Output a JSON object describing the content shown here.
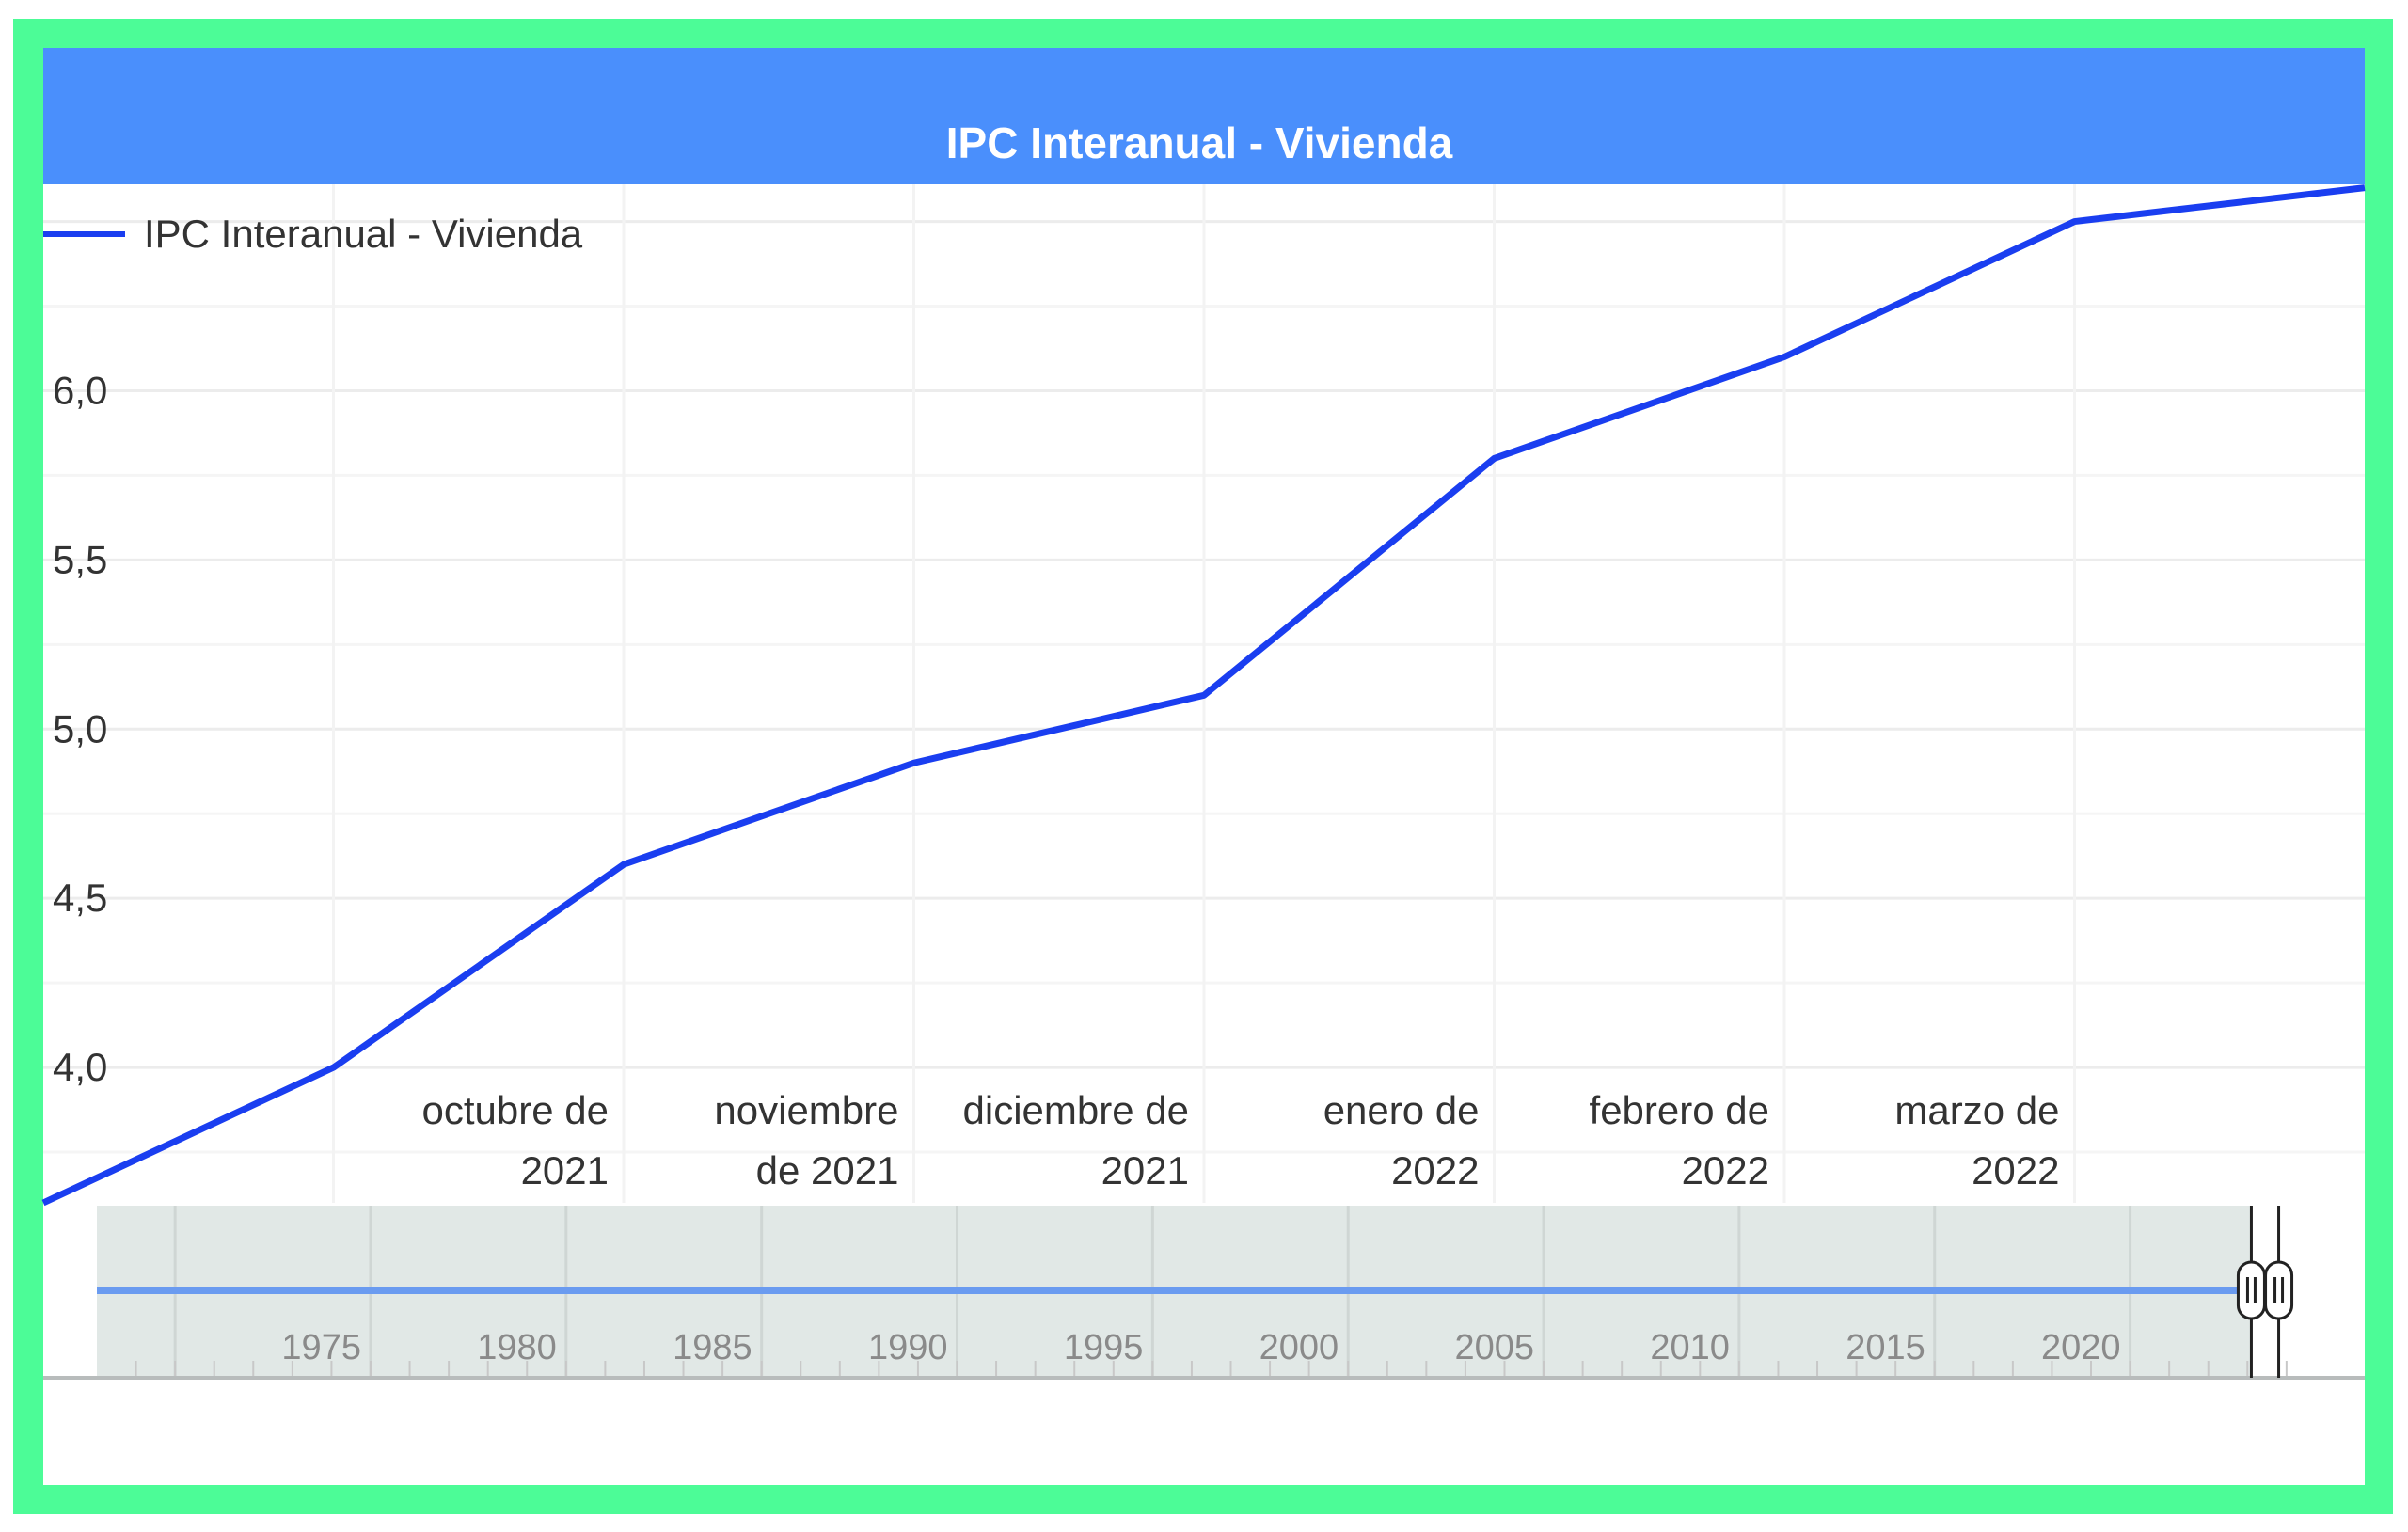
{
  "chart_data": {
    "type": "line",
    "title": "IPC Interanual - Vivienda",
    "xlabel": "",
    "ylabel": "",
    "categories": [
      "",
      "",
      "octubre de|2021",
      "noviembre|de 2021",
      "diciembre de|2021",
      "enero de|2022",
      "febrero de|2022",
      "marzo de|2022",
      ""
    ],
    "series": [
      {
        "name": "IPC Interanual - Vivienda",
        "values": [
          3.6,
          4.0,
          4.6,
          4.9,
          5.1,
          5.8,
          6.1,
          6.5,
          6.6
        ]
      }
    ],
    "yticks": [
      4.0,
      4.5,
      5.0,
      5.5,
      6.0
    ],
    "ytick_labels": [
      "4,0",
      "4,5",
      "5,0",
      "5,5",
      "6,0"
    ],
    "ylim": [
      3.6,
      6.61
    ],
    "grid": true,
    "legend": "top-left",
    "navigator": {
      "tick_labels": [
        "1975",
        "1980",
        "1985",
        "1990",
        "1995",
        "2000",
        "2005",
        "2010",
        "2015",
        "2020"
      ],
      "range_years": [
        1968,
        2026
      ],
      "selected_range_years": [
        2023.1,
        2023.8
      ]
    }
  },
  "colors": {
    "frame": "#4cfc97",
    "header": "#4a8ffc",
    "series": "#1a3ef0",
    "navigator_bg": "#e1e8e6",
    "navigator_line": "#6a9bf0"
  }
}
